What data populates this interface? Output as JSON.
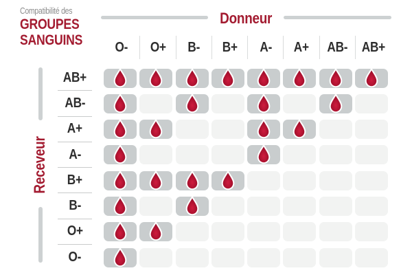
{
  "title": {
    "kicker": "Compatibilité des",
    "line1": "GROUPES",
    "line2": "SANGUINS"
  },
  "chart_data": {
    "type": "heatmap",
    "title": "Compatibilité des groupes sanguins",
    "x_axis_label": "Donneur",
    "y_axis_label": "Receveur",
    "donors": [
      "O-",
      "O+",
      "B-",
      "B+",
      "A-",
      "A+",
      "AB-",
      "AB+"
    ],
    "receivers": [
      "AB+",
      "AB-",
      "A+",
      "A-",
      "B+",
      "B-",
      "O+",
      "O-"
    ],
    "matrix": [
      [
        1,
        1,
        1,
        1,
        1,
        1,
        1,
        1
      ],
      [
        1,
        0,
        1,
        0,
        1,
        0,
        1,
        0
      ],
      [
        1,
        1,
        0,
        0,
        1,
        1,
        0,
        0
      ],
      [
        1,
        0,
        0,
        0,
        1,
        0,
        0,
        0
      ],
      [
        1,
        1,
        1,
        1,
        0,
        0,
        0,
        0
      ],
      [
        1,
        0,
        1,
        0,
        0,
        0,
        0,
        0
      ],
      [
        1,
        1,
        0,
        0,
        0,
        0,
        0,
        0
      ],
      [
        1,
        0,
        0,
        0,
        0,
        0,
        0,
        0
      ]
    ],
    "cell_marker": "blood-drop-icon",
    "marker_meaning": "compatible",
    "grid": false,
    "legend_position": "none"
  },
  "colors": {
    "brand_red": "#a31b30",
    "drop_red_light": "#cf1c3e",
    "drop_red": "#ad1230",
    "drop_red_dark": "#8c0e26",
    "cell_on": "#c9cdce",
    "cell_off": "#f2f3f2",
    "bar_gray": "#cdd1d2",
    "line_gray": "#d9dbdb",
    "row_line_gray": "#c9cbcb",
    "text_dark": "#2d2d2d",
    "text_gray": "#8b8b8b"
  }
}
